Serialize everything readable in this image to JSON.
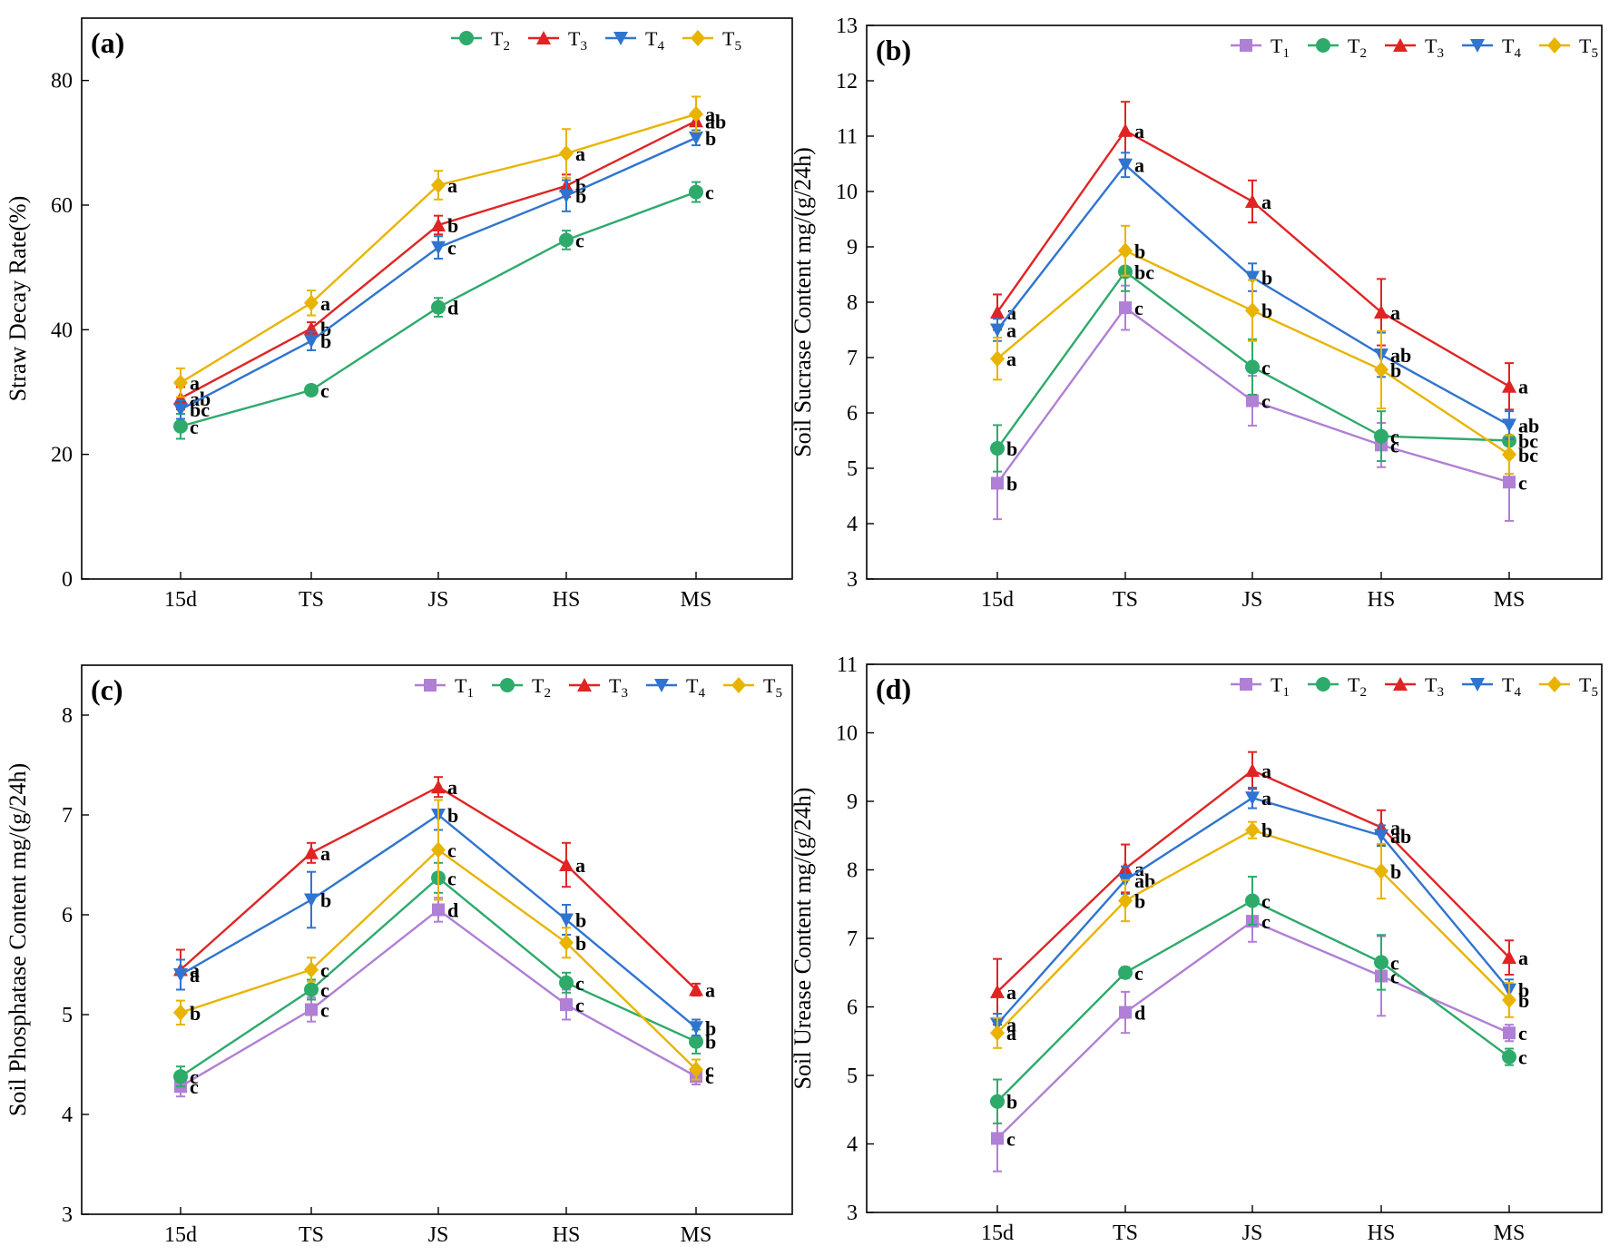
{
  "colors": {
    "T1": "#b07fd6",
    "T2": "#2eaa6b",
    "T3": "#e02424",
    "T4": "#2f74d0",
    "T5": "#e8b400"
  },
  "markers": {
    "T1": "square",
    "T2": "circle",
    "T3": "triangle-up",
    "T4": "triangle-down",
    "T5": "diamond"
  },
  "chart_data": [
    {
      "panel": "(a)",
      "type": "line",
      "title": "",
      "xlabel": "",
      "ylabel": "Straw Decay Rate(%)",
      "categories": [
        "15d",
        "TS",
        "JS",
        "HS",
        "MS"
      ],
      "ylim": [
        0,
        90
      ],
      "yticks": [
        0,
        20,
        40,
        60,
        80
      ],
      "legend": "top-right",
      "series": [
        {
          "id": "T2",
          "name": "T",
          "sub": "2",
          "values": [
            24.5,
            30.3,
            43.6,
            54.4,
            62.1
          ],
          "errors": [
            2.0,
            0.8,
            1.5,
            1.5,
            1.6
          ],
          "letters": [
            "c",
            "c",
            "d",
            "c",
            "c"
          ]
        },
        {
          "id": "T3",
          "name": "T",
          "sub": "3",
          "values": [
            29.0,
            40.2,
            56.8,
            63.1,
            73.5
          ],
          "errors": [
            1.8,
            1.0,
            1.5,
            1.8,
            1.5
          ],
          "letters": [
            "ab",
            "b",
            "b",
            "b",
            "ab"
          ]
        },
        {
          "id": "T4",
          "name": "T",
          "sub": "4",
          "values": [
            27.2,
            38.2,
            53.2,
            61.5,
            70.8
          ],
          "errors": [
            1.5,
            1.5,
            1.8,
            2.5,
            1.2
          ],
          "letters": [
            "bc",
            "b",
            "c",
            "b",
            "b"
          ]
        },
        {
          "id": "T5",
          "name": "T",
          "sub": "5",
          "values": [
            31.5,
            44.3,
            63.2,
            68.3,
            74.6
          ],
          "errors": [
            2.3,
            2.0,
            2.3,
            3.9,
            2.8
          ],
          "letters": [
            "a",
            "a",
            "a",
            "a",
            "a"
          ]
        }
      ]
    },
    {
      "panel": "(b)",
      "type": "line",
      "title": "",
      "xlabel": "",
      "ylabel": "Soil Sucrase Content mg/(g/24h)",
      "categories": [
        "15d",
        "TS",
        "JS",
        "HS",
        "MS"
      ],
      "ylim": [
        3,
        13
      ],
      "yticks": [
        3,
        4,
        5,
        6,
        7,
        8,
        9,
        10,
        11,
        12,
        13
      ],
      "legend": "top-right",
      "series": [
        {
          "id": "T1",
          "name": "T",
          "sub": "1",
          "values": [
            4.73,
            7.9,
            6.22,
            5.42,
            4.75
          ],
          "errors": [
            0.65,
            0.4,
            0.45,
            0.4,
            0.7
          ],
          "letters": [
            "b",
            "c",
            "c",
            "c",
            "c"
          ]
        },
        {
          "id": "T2",
          "name": "T",
          "sub": "2",
          "values": [
            5.36,
            8.55,
            6.83,
            5.58,
            5.5
          ],
          "errors": [
            0.42,
            0.35,
            0.5,
            0.45,
            0.3
          ],
          "letters": [
            "b",
            "bc",
            "c",
            "c",
            "bc"
          ]
        },
        {
          "id": "T3",
          "name": "T",
          "sub": "3",
          "values": [
            7.82,
            11.1,
            9.82,
            7.82,
            6.48
          ],
          "errors": [
            0.32,
            0.52,
            0.38,
            0.6,
            0.42
          ],
          "letters": [
            "a",
            "a",
            "a",
            "a",
            "a"
          ]
        },
        {
          "id": "T4",
          "name": "T",
          "sub": "4",
          "values": [
            7.5,
            10.48,
            8.45,
            7.05,
            5.78
          ],
          "errors": [
            0.2,
            0.22,
            0.25,
            0.4,
            0.25
          ],
          "letters": [
            "a",
            "a",
            "b",
            "ab",
            "ab"
          ]
        },
        {
          "id": "T5",
          "name": "T",
          "sub": "5",
          "values": [
            6.98,
            8.93,
            7.85,
            6.78,
            5.25
          ],
          "errors": [
            0.38,
            0.45,
            0.55,
            0.7,
            0.35
          ],
          "letters": [
            "a",
            "b",
            "b",
            "b",
            "bc"
          ]
        }
      ]
    },
    {
      "panel": "(c)",
      "type": "line",
      "title": "",
      "xlabel": "",
      "ylabel": "Soil Phosphatase Content mg/(g/24h)",
      "categories": [
        "15d",
        "TS",
        "JS",
        "HS",
        "MS"
      ],
      "ylim": [
        3,
        8.5
      ],
      "yticks": [
        3,
        4,
        5,
        6,
        7,
        8
      ],
      "legend": "top-right",
      "series": [
        {
          "id": "T1",
          "name": "T",
          "sub": "1",
          "values": [
            4.28,
            5.05,
            6.05,
            5.1,
            4.38
          ],
          "errors": [
            0.1,
            0.12,
            0.12,
            0.15,
            0.08
          ],
          "letters": [
            "c",
            "c",
            "d",
            "c",
            "c"
          ]
        },
        {
          "id": "T2",
          "name": "T",
          "sub": "2",
          "values": [
            4.38,
            5.25,
            6.37,
            5.32,
            4.73
          ],
          "errors": [
            0.1,
            0.1,
            0.15,
            0.1,
            0.12
          ],
          "letters": [
            "c",
            "c",
            "c",
            "c",
            "b"
          ]
        },
        {
          "id": "T3",
          "name": "T",
          "sub": "3",
          "values": [
            5.45,
            6.62,
            7.28,
            6.5,
            5.25
          ],
          "errors": [
            0.2,
            0.1,
            0.1,
            0.22,
            0.06
          ],
          "letters": [
            "a",
            "a",
            "a",
            "a",
            "a"
          ]
        },
        {
          "id": "T4",
          "name": "T",
          "sub": "4",
          "values": [
            5.4,
            6.15,
            7.0,
            5.95,
            4.87
          ],
          "errors": [
            0.15,
            0.28,
            0.15,
            0.15,
            0.08
          ],
          "letters": [
            "a",
            "b",
            "b",
            "b",
            "b"
          ]
        },
        {
          "id": "T5",
          "name": "T",
          "sub": "5",
          "values": [
            5.02,
            5.45,
            6.65,
            5.72,
            4.45
          ],
          "errors": [
            0.12,
            0.12,
            0.5,
            0.15,
            0.1
          ],
          "letters": [
            "b",
            "c",
            "c",
            "b",
            "c"
          ]
        }
      ]
    },
    {
      "panel": "(d)",
      "type": "line",
      "title": "",
      "xlabel": "",
      "ylabel": "Soil Urease Content mg/(g/24h)",
      "categories": [
        "15d",
        "TS",
        "JS",
        "HS",
        "MS"
      ],
      "ylim": [
        3,
        11
      ],
      "yticks": [
        3,
        4,
        5,
        6,
        7,
        8,
        9,
        10,
        11
      ],
      "legend": "top-right",
      "series": [
        {
          "id": "T1",
          "name": "T",
          "sub": "1",
          "values": [
            4.08,
            5.92,
            7.25,
            6.45,
            5.62
          ],
          "errors": [
            0.48,
            0.3,
            0.3,
            0.58,
            0.12
          ],
          "letters": [
            "c",
            "d",
            "c",
            "c",
            "c"
          ]
        },
        {
          "id": "T2",
          "name": "T",
          "sub": "2",
          "values": [
            4.62,
            6.5,
            7.55,
            6.65,
            5.27
          ],
          "errors": [
            0.32,
            0.08,
            0.35,
            0.4,
            0.12
          ],
          "letters": [
            "b",
            "c",
            "c",
            "c",
            "c"
          ]
        },
        {
          "id": "T3",
          "name": "T",
          "sub": "3",
          "values": [
            6.22,
            8.02,
            9.45,
            8.62,
            6.72
          ],
          "errors": [
            0.48,
            0.35,
            0.27,
            0.25,
            0.25
          ],
          "letters": [
            "a",
            "a",
            "a",
            "a",
            "a"
          ]
        },
        {
          "id": "T4",
          "name": "T",
          "sub": "4",
          "values": [
            5.75,
            7.85,
            9.05,
            8.5,
            6.25
          ],
          "errors": [
            0.15,
            0.2,
            0.15,
            0.15,
            0.15
          ],
          "letters": [
            "a",
            "ab",
            "a",
            "ab",
            "b"
          ]
        },
        {
          "id": "T5",
          "name": "T",
          "sub": "5",
          "values": [
            5.62,
            7.55,
            8.58,
            7.98,
            6.1
          ],
          "errors": [
            0.22,
            0.3,
            0.12,
            0.4,
            0.25
          ],
          "letters": [
            "a",
            "b",
            "b",
            "b",
            "b"
          ]
        }
      ]
    }
  ]
}
